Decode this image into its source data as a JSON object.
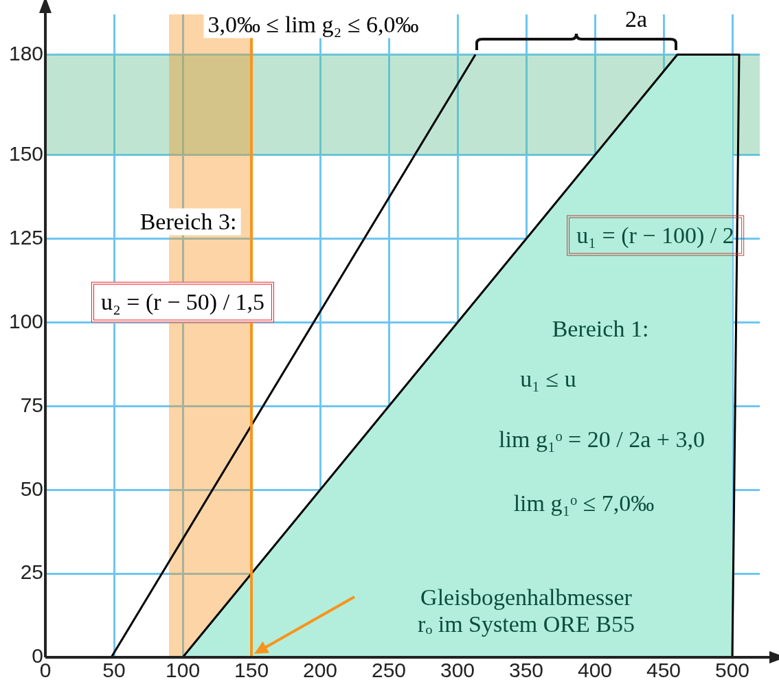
{
  "chart_data": {
    "type": "line",
    "xlim": [
      0,
      520
    ],
    "ylim": [
      0,
      192
    ],
    "xticks": [
      0,
      50,
      100,
      150,
      200,
      250,
      300,
      350,
      400,
      450,
      500
    ],
    "yticks": [
      0,
      25,
      50,
      75,
      100,
      125,
      150,
      180
    ],
    "grid": true,
    "legend": false,
    "marker": "none",
    "line_style": "solid",
    "series": [
      {
        "type": "area",
        "color": "#b3eedd",
        "x": [
          100,
          460,
          505,
          500
        ],
        "values": [
          0,
          180,
          180,
          0
        ]
      },
      {
        "type": "line",
        "color": "#000000",
        "x": [
          48,
          313
        ],
        "values": [
          0,
          180
        ]
      }
    ],
    "ref_lines": [
      {
        "axis": "x",
        "value": 150,
        "color": "#f7941d"
      }
    ],
    "bands": [
      {
        "axis": "y",
        "from": 150,
        "to": 180,
        "color": "#5fbf8f"
      },
      {
        "axis": "x",
        "from": 90,
        "to": 150,
        "color": "#f7941d"
      }
    ],
    "annotations": [
      "3,0‰ ≤ lim g₂ ≤ 6,0‰",
      "2a",
      "Bereich 3:",
      "u₂ = (r − 50) / 1,5",
      "u₁ = (r − 100) / 2",
      "Bereich 1:",
      "u₁ ≤ u",
      "lim g₁ᵒ = 20 / 2a + 3,0",
      "lim g₁ᵒ ≤ 7,0‰",
      "Gleisbogenhalbmesser\nrₒ im System ORE B55"
    ]
  }
}
